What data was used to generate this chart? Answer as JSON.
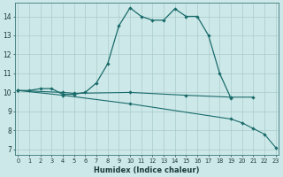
{
  "xlabel": "Humidex (Indice chaleur)",
  "background_color": "#cde8e8",
  "grid_color": "#aacccc",
  "line_color": "#1a6b6b",
  "line1_x": [
    0,
    1,
    2,
    3,
    4,
    5,
    6,
    7,
    8,
    9,
    10,
    11,
    12,
    13,
    14,
    15,
    16,
    17,
    18,
    19
  ],
  "line1_y": [
    10.1,
    10.1,
    10.2,
    10.2,
    9.9,
    9.9,
    10.0,
    10.5,
    11.5,
    13.5,
    14.45,
    14.0,
    13.8,
    13.8,
    14.4,
    14.0,
    14.0,
    13.0,
    11.0,
    9.7
  ],
  "line2_x": [
    0,
    4,
    5,
    10,
    15,
    19,
    21
  ],
  "line2_y": [
    10.1,
    10.0,
    9.95,
    10.0,
    9.85,
    9.75,
    9.75
  ],
  "line3_x": [
    0,
    4,
    10,
    19,
    20,
    21,
    22,
    23
  ],
  "line3_y": [
    10.1,
    9.85,
    9.4,
    8.6,
    8.4,
    8.1,
    7.8,
    7.1
  ],
  "yticks": [
    7,
    8,
    9,
    10,
    11,
    12,
    13,
    14
  ],
  "xticks": [
    0,
    1,
    2,
    3,
    4,
    5,
    6,
    7,
    8,
    9,
    10,
    11,
    12,
    13,
    14,
    15,
    16,
    17,
    18,
    19,
    20,
    21,
    22,
    23
  ]
}
